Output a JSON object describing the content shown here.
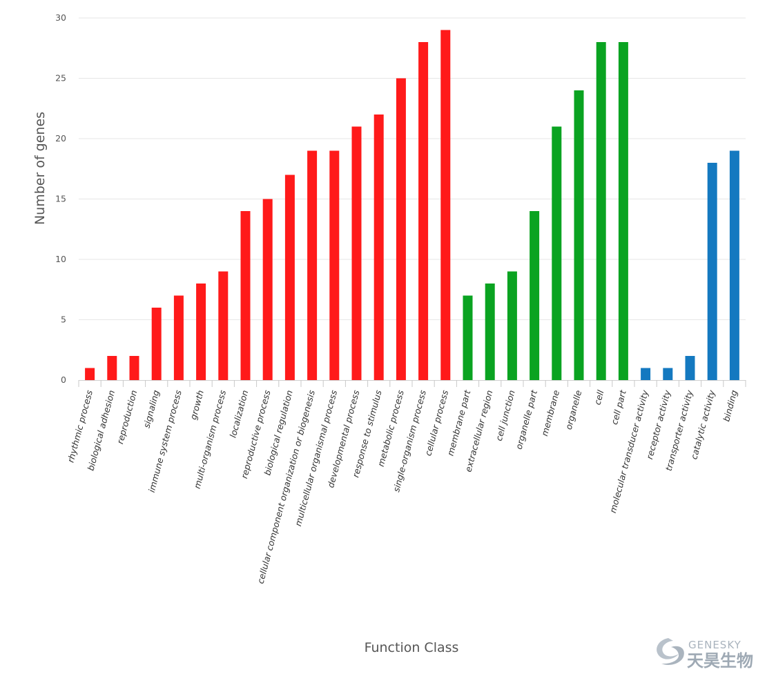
{
  "chart_data": {
    "type": "bar",
    "ylabel": "Number of genes",
    "xlabel": "Function Class",
    "ylim": [
      0,
      30
    ],
    "yticks": [
      "0",
      "5",
      "10",
      "15",
      "20",
      "25",
      "30"
    ],
    "grid": true,
    "categories": [
      "rhythmic process",
      "biological adhesion",
      "reproduction",
      "signaling",
      "immune system process",
      "growth",
      "multi-organism process",
      "localization",
      "reproductive process",
      "biological regulation",
      "cellular component organization or biogenesis",
      "multicellular organismal process",
      "developmental process",
      "response to stimulus",
      "metabolic process",
      "single-organism process",
      "cellular process",
      "membrane part",
      "extracellular region",
      "cell junction",
      "organelle part",
      "membrane",
      "organelle",
      "cell",
      "cell part",
      "molecular transducer activity",
      "receptor activity",
      "transporter activity",
      "catalytic activity",
      "binding"
    ],
    "values": [
      1,
      2,
      2,
      6,
      7,
      8,
      9,
      14,
      15,
      17,
      19,
      19,
      21,
      22,
      25,
      28,
      29,
      7,
      8,
      9,
      14,
      21,
      24,
      28,
      28,
      1,
      1,
      2,
      18,
      19
    ],
    "groups": [
      {
        "color": "#ff1a1a",
        "start": 0,
        "end": 16
      },
      {
        "color": "#0aa321",
        "start": 17,
        "end": 24
      },
      {
        "color": "#1479c0",
        "start": 25,
        "end": 29
      }
    ]
  },
  "watermark": {
    "brand_en": "GENESKY",
    "brand_cn": "天昊生物"
  }
}
